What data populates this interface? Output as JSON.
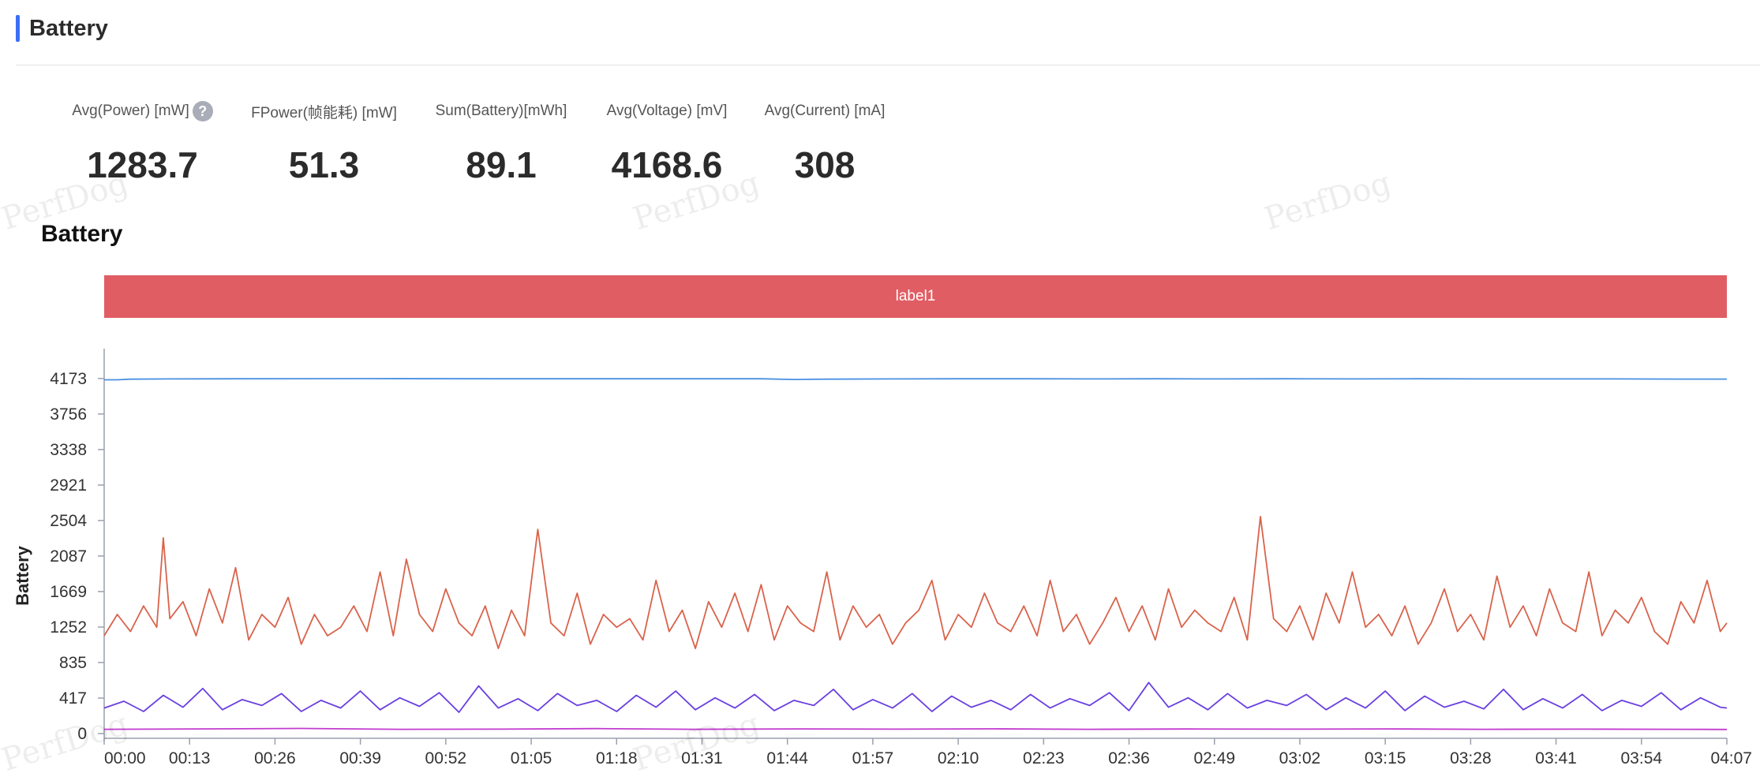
{
  "header": {
    "title": "Battery",
    "accent_color": "#3b6ff5"
  },
  "stats": [
    {
      "label": "Avg(Power) [mW]",
      "value": "1283.7",
      "has_help": true
    },
    {
      "label": "FPower(帧能耗) [mW]",
      "value": "51.3",
      "has_help": false
    },
    {
      "label": "Sum(Battery)[mWh]",
      "value": "89.1",
      "has_help": false
    },
    {
      "label": "Avg(Voltage) [mV]",
      "value": "4168.6",
      "has_help": false
    },
    {
      "label": "Avg(Current) [mA]",
      "value": "308",
      "has_help": false
    }
  ],
  "help_icon": {
    "glyph": "?",
    "icon": "question-icon"
  },
  "watermark": "PerfDog",
  "chart_data": {
    "type": "line",
    "title": "Battery",
    "ylabel": "Battery",
    "xlabel": "",
    "ylim": [
      0,
      4450
    ],
    "y_ticks": [
      0,
      417,
      835,
      1252,
      1669,
      2087,
      2504,
      2921,
      3338,
      3756,
      4173
    ],
    "x_tick_labels": [
      "00:00",
      "00:13",
      "00:26",
      "00:39",
      "00:52",
      "01:05",
      "01:18",
      "01:31",
      "01:44",
      "01:57",
      "02:10",
      "02:23",
      "02:36",
      "02:49",
      "03:02",
      "03:15",
      "03:28",
      "03:41",
      "03:54",
      "04:07"
    ],
    "duration_seconds": 247,
    "label_band": {
      "text": "label1",
      "color": "#e05d64"
    },
    "series": [
      {
        "color": "#4a90e2",
        "x": [
          0,
          2,
          4,
          10,
          20,
          40,
          60,
          80,
          100,
          105,
          110,
          120,
          130,
          140,
          150,
          160,
          170,
          180,
          190,
          200,
          210,
          220,
          230,
          240,
          247
        ],
        "values": [
          4158,
          4158,
          4165,
          4168,
          4170,
          4172,
          4170,
          4170,
          4170,
          4162,
          4165,
          4168,
          4170,
          4170,
          4168,
          4170,
          4168,
          4170,
          4168,
          4170,
          4168,
          4168,
          4168,
          4166,
          4166
        ]
      },
      {
        "color": "#d9634b",
        "x": [
          0,
          2,
          4,
          6,
          8,
          9,
          10,
          12,
          14,
          16,
          18,
          20,
          22,
          24,
          26,
          28,
          30,
          32,
          34,
          36,
          38,
          40,
          42,
          44,
          46,
          48,
          50,
          52,
          54,
          56,
          58,
          60,
          62,
          64,
          66,
          68,
          70,
          72,
          74,
          76,
          78,
          80,
          82,
          84,
          86,
          88,
          90,
          92,
          94,
          96,
          98,
          100,
          102,
          104,
          106,
          108,
          110,
          112,
          114,
          116,
          118,
          120,
          122,
          124,
          126,
          128,
          130,
          132,
          134,
          136,
          138,
          140,
          142,
          144,
          146,
          148,
          150,
          152,
          154,
          156,
          158,
          160,
          162,
          164,
          166,
          168,
          170,
          172,
          174,
          176,
          178,
          180,
          182,
          184,
          186,
          188,
          190,
          192,
          194,
          196,
          198,
          200,
          202,
          204,
          206,
          208,
          210,
          212,
          214,
          216,
          218,
          220,
          222,
          224,
          226,
          228,
          230,
          232,
          234,
          236,
          238,
          240,
          242,
          244,
          246,
          247
        ],
        "values": [
          1150,
          1400,
          1200,
          1500,
          1250,
          2300,
          1350,
          1550,
          1150,
          1700,
          1300,
          1950,
          1100,
          1400,
          1250,
          1600,
          1050,
          1400,
          1150,
          1250,
          1500,
          1200,
          1900,
          1150,
          2050,
          1400,
          1200,
          1700,
          1300,
          1150,
          1500,
          1000,
          1450,
          1150,
          2400,
          1300,
          1150,
          1650,
          1050,
          1400,
          1250,
          1350,
          1100,
          1800,
          1200,
          1450,
          1000,
          1550,
          1250,
          1650,
          1200,
          1750,
          1100,
          1500,
          1300,
          1200,
          1900,
          1100,
          1500,
          1250,
          1400,
          1050,
          1300,
          1450,
          1800,
          1100,
          1400,
          1250,
          1650,
          1300,
          1200,
          1500,
          1150,
          1800,
          1200,
          1400,
          1050,
          1300,
          1600,
          1200,
          1500,
          1100,
          1700,
          1250,
          1450,
          1300,
          1200,
          1600,
          1100,
          2550,
          1350,
          1200,
          1500,
          1100,
          1650,
          1300,
          1900,
          1250,
          1400,
          1150,
          1500,
          1050,
          1300,
          1700,
          1200,
          1400,
          1100,
          1850,
          1250,
          1500,
          1150,
          1700,
          1300,
          1200,
          1900,
          1150,
          1450,
          1300,
          1600,
          1200,
          1050,
          1550,
          1300,
          1800,
          1200,
          1300
        ]
      },
      {
        "color": "#6a3fe0",
        "x": [
          0,
          3,
          6,
          9,
          12,
          15,
          18,
          21,
          24,
          27,
          30,
          33,
          36,
          39,
          42,
          45,
          48,
          51,
          54,
          57,
          60,
          63,
          66,
          69,
          72,
          75,
          78,
          81,
          84,
          87,
          90,
          93,
          96,
          99,
          102,
          105,
          108,
          111,
          114,
          117,
          120,
          123,
          126,
          129,
          132,
          135,
          138,
          141,
          144,
          147,
          150,
          153,
          156,
          159,
          162,
          165,
          168,
          171,
          174,
          177,
          180,
          183,
          186,
          189,
          192,
          195,
          198,
          201,
          204,
          207,
          210,
          213,
          216,
          219,
          222,
          225,
          228,
          231,
          234,
          237,
          240,
          243,
          246,
          247
        ],
        "values": [
          300,
          380,
          260,
          450,
          310,
          530,
          280,
          400,
          330,
          470,
          260,
          390,
          300,
          500,
          280,
          420,
          320,
          480,
          250,
          560,
          300,
          410,
          270,
          470,
          330,
          390,
          260,
          450,
          310,
          500,
          280,
          420,
          300,
          460,
          270,
          390,
          330,
          520,
          280,
          400,
          300,
          470,
          260,
          440,
          310,
          390,
          280,
          460,
          300,
          410,
          330,
          480,
          270,
          600,
          310,
          420,
          280,
          470,
          300,
          390,
          330,
          460,
          280,
          420,
          300,
          500,
          270,
          440,
          310,
          380,
          290,
          520,
          280,
          410,
          300,
          460,
          270,
          390,
          320,
          480,
          280,
          420,
          310,
          300
        ]
      },
      {
        "color": "#c23bcf",
        "x": [
          0,
          15,
          30,
          45,
          60,
          75,
          90,
          105,
          120,
          135,
          150,
          165,
          180,
          195,
          210,
          225,
          240,
          247
        ],
        "values": [
          50,
          55,
          60,
          50,
          52,
          58,
          50,
          55,
          52,
          56,
          50,
          54,
          52,
          55,
          50,
          52,
          50,
          48
        ]
      }
    ]
  }
}
